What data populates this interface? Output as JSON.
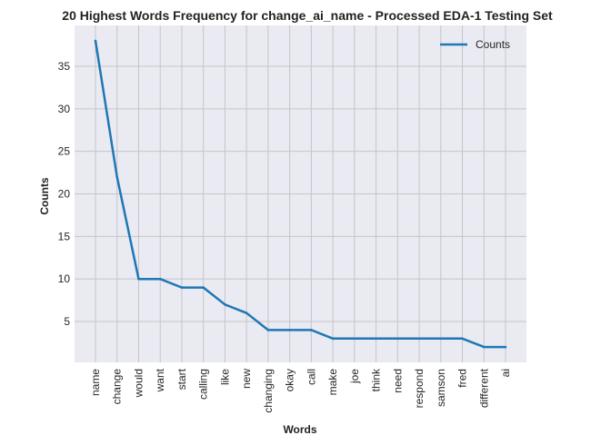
{
  "chart_data": {
    "type": "line",
    "title": "20 Highest Words Frequency for change_ai_name - Processed EDA-1 Testing Set",
    "xlabel": "Words",
    "ylabel": "Counts",
    "categories": [
      "name",
      "change",
      "would",
      "want",
      "start",
      "calling",
      "like",
      "new",
      "changing",
      "okay",
      "call",
      "make",
      "joe",
      "think",
      "need",
      "respond",
      "samson",
      "fred",
      "different",
      "ai"
    ],
    "series": [
      {
        "name": "Counts",
        "values": [
          38,
          22,
          10,
          10,
          9,
          9,
          7,
          6,
          4,
          4,
          4,
          3,
          3,
          3,
          3,
          3,
          3,
          3,
          2,
          2
        ],
        "color": "#1f77b4"
      }
    ],
    "ylim": [
      0.2,
      39.8
    ],
    "yticks": [
      5,
      10,
      15,
      20,
      25,
      30,
      35
    ],
    "grid": true,
    "legend": "top-right",
    "background": "#eaeaf2"
  }
}
